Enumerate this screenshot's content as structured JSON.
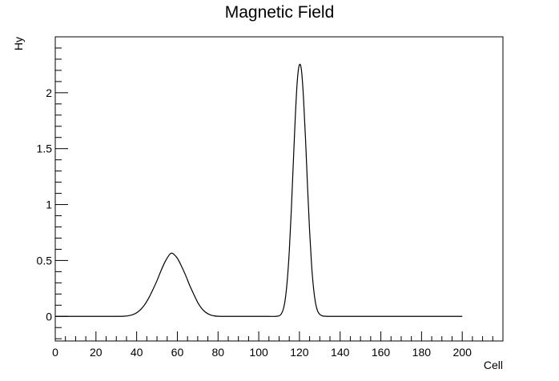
{
  "chart_data": {
    "type": "line",
    "title": "Magnetic Field",
    "xlabel": "Cell",
    "ylabel": "Hy",
    "xlim": [
      0,
      220
    ],
    "ylim": [
      -0.22,
      2.5
    ],
    "x_ticks": [
      0,
      20,
      40,
      60,
      80,
      100,
      120,
      140,
      160,
      180,
      200
    ],
    "x_tick_labels": [
      "0",
      "20",
      "40",
      "60",
      "80",
      "100",
      "120",
      "140",
      "160",
      "180",
      "200"
    ],
    "y_ticks": [
      0,
      0.5,
      1,
      1.5,
      2
    ],
    "y_tick_labels": [
      "0",
      "0.5",
      "1",
      "1.5",
      "2"
    ],
    "grid": false,
    "legend": "none",
    "line_color": "#000000",
    "series": [
      {
        "x": [
          0,
          5,
          10,
          15,
          20,
          25,
          30,
          34,
          36,
          38,
          40,
          42,
          44,
          46,
          48,
          50,
          52,
          54,
          56,
          57,
          58,
          60,
          62,
          64,
          66,
          68,
          70,
          72,
          74,
          76,
          78,
          80,
          85,
          90,
          95,
          100,
          105,
          108,
          110,
          111,
          112,
          113,
          114,
          115,
          116,
          117,
          118,
          119,
          120,
          121,
          122,
          123,
          124,
          125,
          126,
          127,
          128,
          129,
          130,
          131,
          132,
          134,
          140,
          150,
          160,
          170,
          180,
          190,
          200
        ],
        "y": [
          0,
          0,
          0,
          0,
          0,
          0,
          0,
          0.002,
          0.006,
          0.015,
          0.032,
          0.062,
          0.106,
          0.166,
          0.24,
          0.32,
          0.41,
          0.49,
          0.55,
          0.565,
          0.56,
          0.52,
          0.45,
          0.37,
          0.28,
          0.2,
          0.125,
          0.07,
          0.035,
          0.015,
          0.005,
          0.001,
          0,
          0,
          0,
          0,
          0,
          0,
          0.005,
          0.02,
          0.06,
          0.15,
          0.32,
          0.58,
          0.95,
          1.38,
          1.8,
          2.12,
          2.25,
          2.2,
          1.95,
          1.58,
          1.15,
          0.76,
          0.45,
          0.24,
          0.11,
          0.045,
          0.018,
          0.006,
          0.002,
          0,
          0,
          0,
          0,
          0,
          0,
          0,
          0
        ]
      }
    ]
  }
}
